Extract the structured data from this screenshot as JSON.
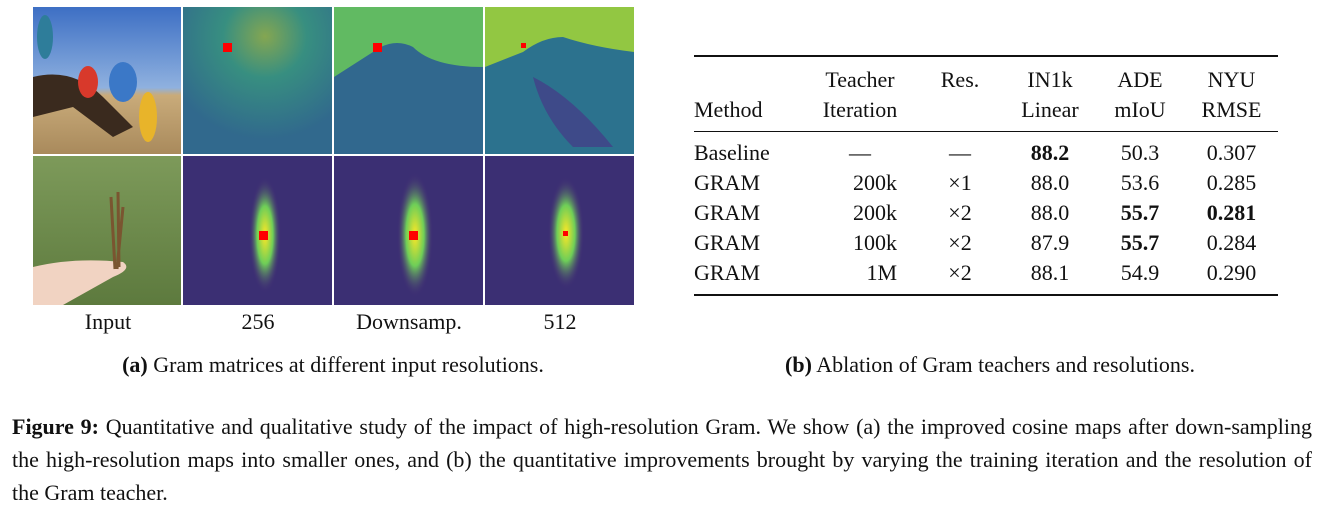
{
  "panel_a": {
    "column_labels": [
      "Input",
      "256",
      "Downsamp.",
      "512"
    ],
    "caption_label": "(a)",
    "caption": "Gram matrices at different input resolutions."
  },
  "panel_b": {
    "header": {
      "method": "Method",
      "teacher": [
        "Teacher",
        "Iteration"
      ],
      "res": "Res.",
      "in1k": [
        "IN1k",
        "Linear"
      ],
      "ade": [
        "ADE",
        "mIoU"
      ],
      "nyu": [
        "NYU",
        "RMSE"
      ]
    },
    "rows": [
      [
        "Baseline",
        "—",
        "—",
        "88.2",
        "50.3",
        "0.307"
      ],
      [
        "GRAM",
        "200k",
        "×1",
        "88.0",
        "53.6",
        "0.285"
      ],
      [
        "GRAM",
        "200k",
        "×2",
        "88.0",
        "55.7",
        "0.281"
      ],
      [
        "GRAM",
        "100k",
        "×2",
        "87.9",
        "55.7",
        "0.284"
      ],
      [
        "GRAM",
        "1M",
        "×2",
        "88.1",
        "54.9",
        "0.290"
      ]
    ],
    "caption_label": "(b)",
    "caption": "Ablation of Gram teachers and resolutions."
  },
  "figure_caption": {
    "label": "Figure 9:",
    "text": "Quantitative and qualitative study of the impact of high-resolution Gram. We show (a) the improved cosine maps after down-sampling the high-resolution maps into smaller ones, and (b) the quantitative improvements brought by varying the training iteration and the resolution of the Gram teacher."
  }
}
